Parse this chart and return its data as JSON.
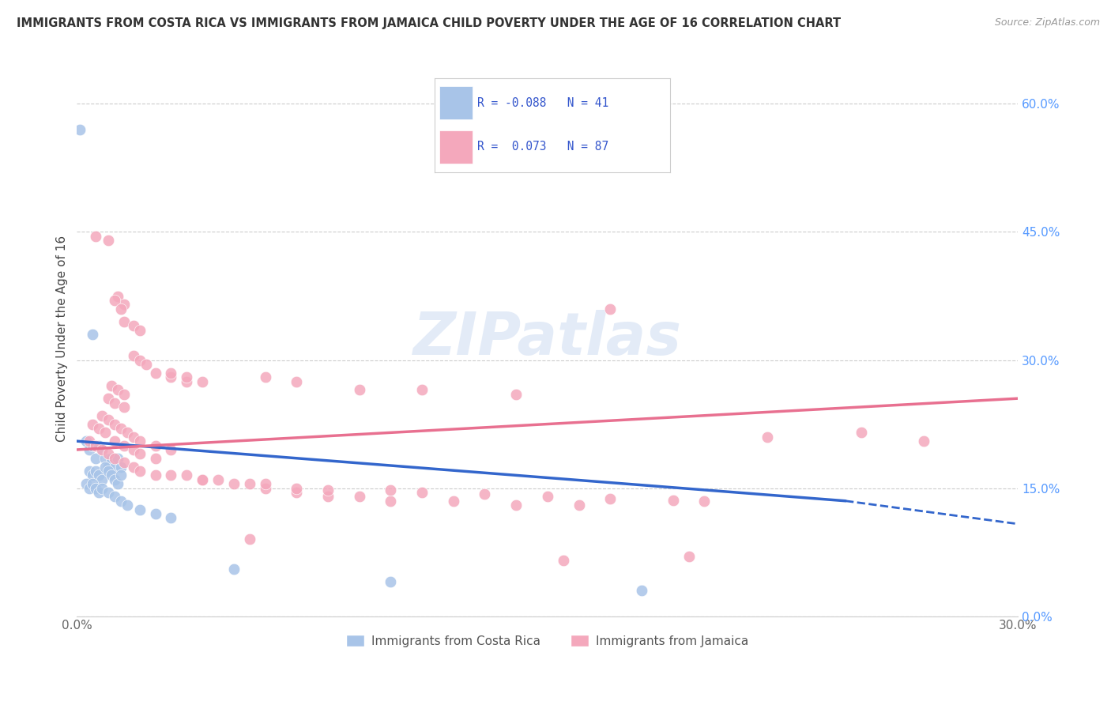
{
  "title": "IMMIGRANTS FROM COSTA RICA VS IMMIGRANTS FROM JAMAICA CHILD POVERTY UNDER THE AGE OF 16 CORRELATION CHART",
  "source": "Source: ZipAtlas.com",
  "ylabel": "Child Poverty Under the Age of 16",
  "xlim": [
    0.0,
    0.3
  ],
  "ylim": [
    0.0,
    0.65
  ],
  "xtick_positions": [
    0.0,
    0.05,
    0.1,
    0.15,
    0.2,
    0.25,
    0.3
  ],
  "xtick_labels": [
    "0.0%",
    "",
    "",
    "",
    "",
    "",
    "30.0%"
  ],
  "ytick_labels_right": [
    "0.0%",
    "15.0%",
    "30.0%",
    "45.0%",
    "60.0%"
  ],
  "yticks_right": [
    0.0,
    0.15,
    0.3,
    0.45,
    0.6
  ],
  "watermark": "ZIPatlas",
  "blue_color": "#a8c4e8",
  "pink_color": "#f4a8bc",
  "line_blue": "#3366cc",
  "line_pink": "#e87090",
  "blue_line_x": [
    0.0,
    0.245,
    0.3
  ],
  "blue_line_y": [
    0.205,
    0.135,
    0.108
  ],
  "pink_line_x": [
    0.0,
    0.3
  ],
  "pink_line_y": [
    0.195,
    0.255
  ],
  "costa_rica_points": [
    [
      0.001,
      0.57
    ],
    [
      0.005,
      0.33
    ],
    [
      0.003,
      0.205
    ],
    [
      0.004,
      0.195
    ],
    [
      0.005,
      0.2
    ],
    [
      0.006,
      0.185
    ],
    [
      0.007,
      0.2
    ],
    [
      0.008,
      0.195
    ],
    [
      0.009,
      0.185
    ],
    [
      0.01,
      0.175
    ],
    [
      0.011,
      0.185
    ],
    [
      0.012,
      0.175
    ],
    [
      0.013,
      0.185
    ],
    [
      0.014,
      0.175
    ],
    [
      0.004,
      0.17
    ],
    [
      0.005,
      0.165
    ],
    [
      0.006,
      0.17
    ],
    [
      0.007,
      0.165
    ],
    [
      0.008,
      0.16
    ],
    [
      0.009,
      0.175
    ],
    [
      0.01,
      0.17
    ],
    [
      0.011,
      0.165
    ],
    [
      0.012,
      0.16
    ],
    [
      0.013,
      0.155
    ],
    [
      0.014,
      0.165
    ],
    [
      0.003,
      0.155
    ],
    [
      0.004,
      0.15
    ],
    [
      0.005,
      0.155
    ],
    [
      0.006,
      0.15
    ],
    [
      0.007,
      0.145
    ],
    [
      0.008,
      0.15
    ],
    [
      0.01,
      0.145
    ],
    [
      0.012,
      0.14
    ],
    [
      0.014,
      0.135
    ],
    [
      0.016,
      0.13
    ],
    [
      0.02,
      0.125
    ],
    [
      0.025,
      0.12
    ],
    [
      0.03,
      0.115
    ],
    [
      0.05,
      0.055
    ],
    [
      0.1,
      0.04
    ],
    [
      0.18,
      0.03
    ]
  ],
  "jamaica_points": [
    [
      0.006,
      0.445
    ],
    [
      0.01,
      0.44
    ],
    [
      0.013,
      0.375
    ],
    [
      0.015,
      0.365
    ],
    [
      0.015,
      0.345
    ],
    [
      0.018,
      0.34
    ],
    [
      0.02,
      0.335
    ],
    [
      0.018,
      0.305
    ],
    [
      0.02,
      0.3
    ],
    [
      0.022,
      0.295
    ],
    [
      0.025,
      0.285
    ],
    [
      0.03,
      0.28
    ],
    [
      0.035,
      0.275
    ],
    [
      0.011,
      0.27
    ],
    [
      0.013,
      0.265
    ],
    [
      0.015,
      0.26
    ],
    [
      0.01,
      0.255
    ],
    [
      0.012,
      0.25
    ],
    [
      0.015,
      0.245
    ],
    [
      0.03,
      0.285
    ],
    [
      0.035,
      0.28
    ],
    [
      0.04,
      0.275
    ],
    [
      0.012,
      0.37
    ],
    [
      0.014,
      0.36
    ],
    [
      0.17,
      0.36
    ],
    [
      0.008,
      0.235
    ],
    [
      0.01,
      0.23
    ],
    [
      0.012,
      0.225
    ],
    [
      0.014,
      0.22
    ],
    [
      0.016,
      0.215
    ],
    [
      0.018,
      0.21
    ],
    [
      0.02,
      0.205
    ],
    [
      0.025,
      0.2
    ],
    [
      0.03,
      0.195
    ],
    [
      0.005,
      0.225
    ],
    [
      0.007,
      0.22
    ],
    [
      0.009,
      0.215
    ],
    [
      0.012,
      0.205
    ],
    [
      0.015,
      0.2
    ],
    [
      0.018,
      0.195
    ],
    [
      0.02,
      0.19
    ],
    [
      0.025,
      0.185
    ],
    [
      0.004,
      0.205
    ],
    [
      0.006,
      0.2
    ],
    [
      0.008,
      0.195
    ],
    [
      0.01,
      0.19
    ],
    [
      0.012,
      0.185
    ],
    [
      0.015,
      0.18
    ],
    [
      0.018,
      0.175
    ],
    [
      0.02,
      0.17
    ],
    [
      0.025,
      0.165
    ],
    [
      0.03,
      0.165
    ],
    [
      0.04,
      0.16
    ],
    [
      0.05,
      0.155
    ],
    [
      0.06,
      0.15
    ],
    [
      0.07,
      0.145
    ],
    [
      0.08,
      0.14
    ],
    [
      0.09,
      0.14
    ],
    [
      0.1,
      0.135
    ],
    [
      0.12,
      0.135
    ],
    [
      0.14,
      0.13
    ],
    [
      0.16,
      0.13
    ],
    [
      0.035,
      0.165
    ],
    [
      0.04,
      0.16
    ],
    [
      0.045,
      0.16
    ],
    [
      0.055,
      0.155
    ],
    [
      0.06,
      0.155
    ],
    [
      0.07,
      0.15
    ],
    [
      0.08,
      0.148
    ],
    [
      0.1,
      0.148
    ],
    [
      0.11,
      0.145
    ],
    [
      0.13,
      0.143
    ],
    [
      0.15,
      0.14
    ],
    [
      0.17,
      0.138
    ],
    [
      0.19,
      0.136
    ],
    [
      0.2,
      0.135
    ],
    [
      0.06,
      0.28
    ],
    [
      0.07,
      0.275
    ],
    [
      0.09,
      0.265
    ],
    [
      0.11,
      0.265
    ],
    [
      0.14,
      0.26
    ],
    [
      0.055,
      0.09
    ],
    [
      0.155,
      0.065
    ],
    [
      0.195,
      0.07
    ],
    [
      0.22,
      0.21
    ],
    [
      0.25,
      0.215
    ],
    [
      0.27,
      0.205
    ]
  ]
}
